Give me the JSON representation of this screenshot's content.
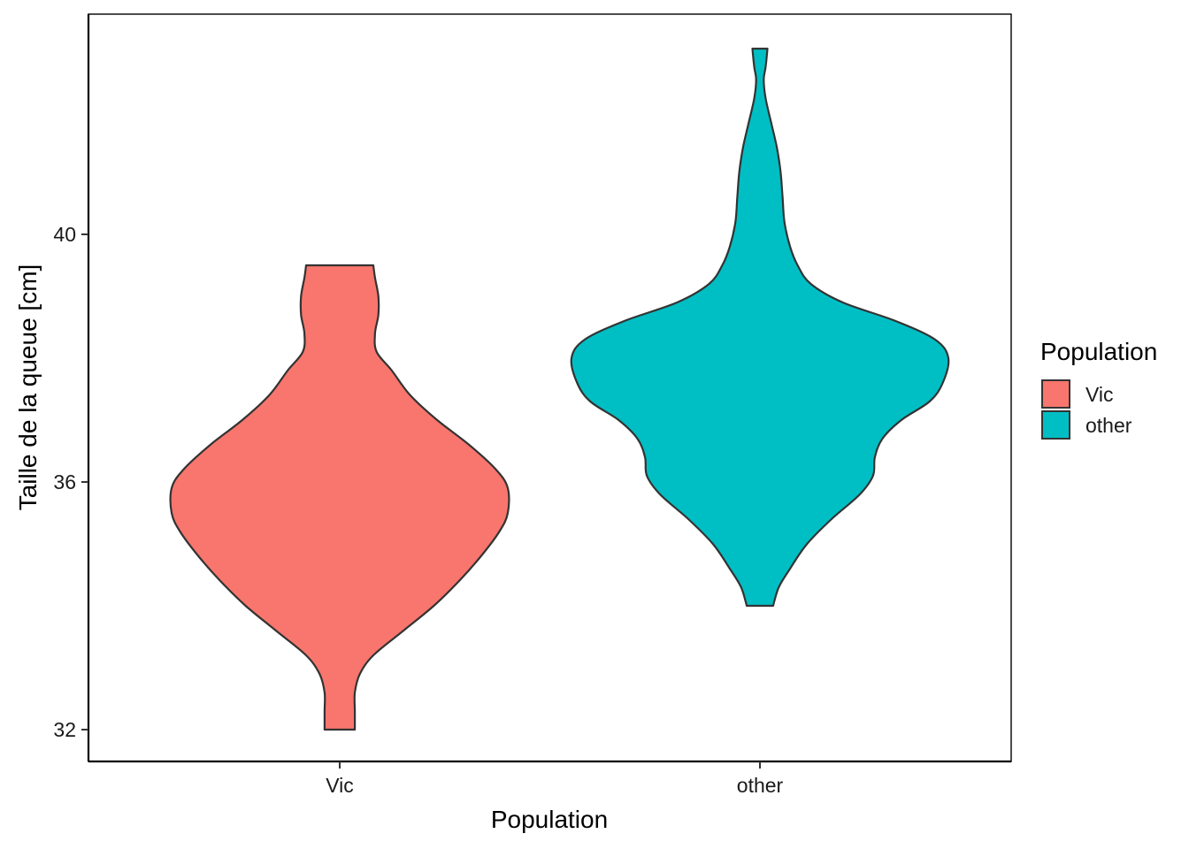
{
  "chart_data": {
    "type": "violin",
    "title": "",
    "xlabel": "Population",
    "ylabel": "Taille de la queue  [cm]",
    "categories": [
      "Vic",
      "other"
    ],
    "y_ticks": [
      32,
      36,
      40
    ],
    "ylim": [
      31.5,
      43.5
    ],
    "grid": false,
    "legend": {
      "title": "Population",
      "position": "right",
      "entries": [
        "Vic",
        "other"
      ]
    },
    "colors": {
      "Vic": "#F8766D",
      "other": "#00BFC4",
      "outline": "#333333"
    },
    "violins": [
      {
        "category": "Vic",
        "min": 32.0,
        "max": 39.5,
        "density_profile": [
          [
            32.0,
            0.09
          ],
          [
            32.3,
            0.09
          ],
          [
            32.6,
            0.09
          ],
          [
            32.9,
            0.12
          ],
          [
            33.2,
            0.2
          ],
          [
            33.6,
            0.38
          ],
          [
            34.0,
            0.56
          ],
          [
            34.4,
            0.71
          ],
          [
            34.8,
            0.84
          ],
          [
            35.2,
            0.95
          ],
          [
            35.5,
            1.0
          ],
          [
            35.9,
            1.0
          ],
          [
            36.2,
            0.93
          ],
          [
            36.6,
            0.77
          ],
          [
            37.0,
            0.58
          ],
          [
            37.4,
            0.42
          ],
          [
            37.8,
            0.31
          ],
          [
            38.1,
            0.22
          ],
          [
            38.4,
            0.21
          ],
          [
            38.7,
            0.23
          ],
          [
            39.0,
            0.23
          ],
          [
            39.3,
            0.21
          ],
          [
            39.5,
            0.2
          ]
        ]
      },
      {
        "category": "other",
        "min": 34.0,
        "max": 43.0,
        "density_profile": [
          [
            34.0,
            0.07
          ],
          [
            34.3,
            0.1
          ],
          [
            34.6,
            0.16
          ],
          [
            35.0,
            0.25
          ],
          [
            35.4,
            0.38
          ],
          [
            35.8,
            0.53
          ],
          [
            36.1,
            0.6
          ],
          [
            36.4,
            0.61
          ],
          [
            36.7,
            0.65
          ],
          [
            37.0,
            0.75
          ],
          [
            37.3,
            0.9
          ],
          [
            37.6,
            0.97
          ],
          [
            38.0,
            1.0
          ],
          [
            38.3,
            0.93
          ],
          [
            38.6,
            0.72
          ],
          [
            38.9,
            0.44
          ],
          [
            39.2,
            0.27
          ],
          [
            39.5,
            0.2
          ],
          [
            39.8,
            0.16
          ],
          [
            40.2,
            0.13
          ],
          [
            40.6,
            0.12
          ],
          [
            41.0,
            0.11
          ],
          [
            41.4,
            0.09
          ],
          [
            41.8,
            0.06
          ],
          [
            42.2,
            0.03
          ],
          [
            42.5,
            0.02
          ],
          [
            42.7,
            0.03
          ],
          [
            43.0,
            0.04
          ]
        ]
      }
    ]
  }
}
